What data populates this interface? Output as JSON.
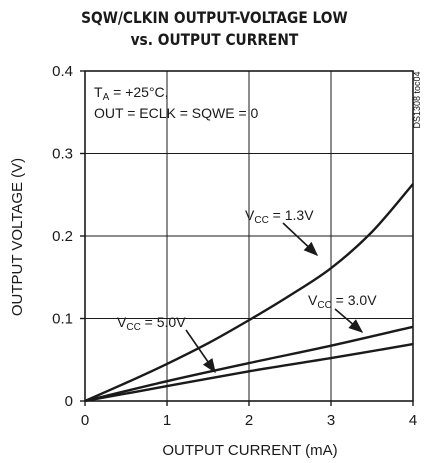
{
  "chart_data": {
    "type": "line",
    "title_line1": "SQW/CLKIN OUTPUT-VOLTAGE LOW",
    "title_line2": "vs. OUTPUT CURRENT",
    "xlabel": "OUTPUT CURRENT (mA)",
    "ylabel": "OUTPUT VOLTAGE (V)",
    "xlim": [
      0,
      4
    ],
    "ylim": [
      0,
      0.4
    ],
    "x_ticks": [
      "0",
      "1",
      "2",
      "3",
      "4"
    ],
    "y_ticks": [
      "0",
      "0.1",
      "0.2",
      "0.3",
      "0.4"
    ],
    "grid": true,
    "side_label": "DS1308 toc04",
    "conditions": {
      "line1_prefix": "T",
      "line1_sub": "A",
      "line1_rest": " = +25°C,",
      "line2": "OUT = ECLK = SQWE = 0"
    },
    "series": [
      {
        "name": "VCC = 1.3V",
        "label_main": "V",
        "label_sub": "CC",
        "label_rest": " = 1.3V",
        "x": [
          0,
          0.5,
          1,
          1.5,
          2,
          2.5,
          3,
          3.5,
          4
        ],
        "y": [
          0,
          0.022,
          0.045,
          0.07,
          0.098,
          0.128,
          0.161,
          0.205,
          0.263
        ]
      },
      {
        "name": "VCC = 3.0V",
        "label_main": "V",
        "label_sub": "CC",
        "label_rest": " = 3.0V",
        "x": [
          0,
          1,
          2,
          3,
          4
        ],
        "y": [
          0,
          0.024,
          0.046,
          0.067,
          0.09
        ]
      },
      {
        "name": "VCC = 5.0V",
        "label_main": "V",
        "label_sub": "CC",
        "label_rest": " = 5.0V",
        "x": [
          0,
          1,
          2,
          3,
          4
        ],
        "y": [
          0,
          0.018,
          0.036,
          0.052,
          0.069
        ]
      }
    ]
  }
}
